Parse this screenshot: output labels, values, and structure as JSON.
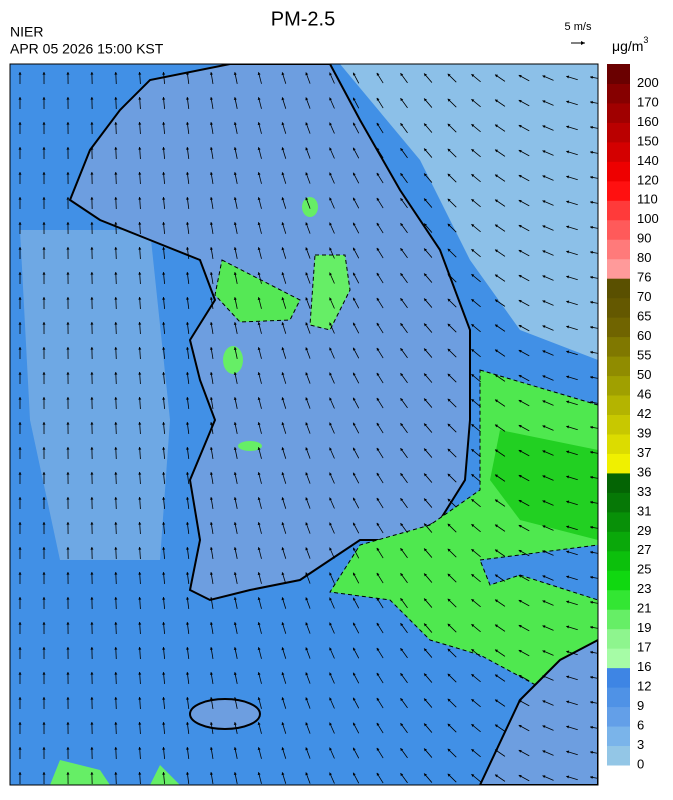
{
  "header": {
    "agency": "NIER",
    "title": "PM-2.5",
    "timestamp": "APR 05 2026 15:00 KST"
  },
  "wind_scale": {
    "label": "5 m/s"
  },
  "colorbar": {
    "unit": {
      "base": "μg/m",
      "superscript": "3"
    },
    "ticks": [
      0,
      3,
      6,
      9,
      12,
      16,
      17,
      19,
      21,
      23,
      25,
      27,
      29,
      31,
      33,
      36,
      37,
      39,
      42,
      46,
      50,
      55,
      60,
      65,
      70,
      76,
      80,
      90,
      100,
      110,
      120,
      140,
      150,
      160,
      170,
      200
    ],
    "colors": [
      "#93c6e6",
      "#7ab4ea",
      "#639fe8",
      "#4f92e6",
      "#3e85e4",
      "#a6fca6",
      "#8ef58e",
      "#66ee66",
      "#33e633",
      "#10d810",
      "#0cc00c",
      "#0aa80a",
      "#089008",
      "#067806",
      "#046404",
      "#f0f000",
      "#dcdc00",
      "#c8c800",
      "#b4b400",
      "#a0a000",
      "#908c00",
      "#807800",
      "#706400",
      "#645800",
      "#5a5000",
      "#ff9a9a",
      "#ff7a7a",
      "#ff5a5a",
      "#ff3a3a",
      "#ff1010",
      "#ee0000",
      "#d40000",
      "#ba0000",
      "#a00000",
      "#860000",
      "#6a0000"
    ]
  }
}
